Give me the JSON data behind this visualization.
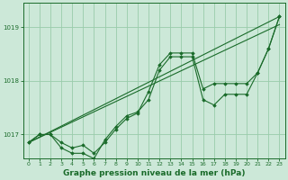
{
  "bg_color": "#cce8d8",
  "plot_bg_color": "#cce8d8",
  "grid_color": "#99ccaa",
  "line_color": "#1a6b2a",
  "marker_color": "#1a6b2a",
  "xlabel": "Graphe pression niveau de la mer (hPa)",
  "xlabel_fontsize": 6.5,
  "xticks": [
    0,
    1,
    2,
    3,
    4,
    5,
    6,
    7,
    8,
    9,
    10,
    11,
    12,
    13,
    14,
    15,
    16,
    17,
    18,
    19,
    20,
    21,
    22,
    23
  ],
  "yticks": [
    1017,
    1018,
    1019
  ],
  "ylim": [
    1016.55,
    1019.45
  ],
  "xlim": [
    -0.5,
    23.5
  ],
  "series1": [
    1016.85,
    1017.0,
    1017.0,
    1016.85,
    1016.75,
    1016.8,
    1016.65,
    1016.85,
    1017.1,
    1017.3,
    1017.4,
    1017.8,
    1018.3,
    1018.52,
    1018.52,
    1018.52,
    1017.85,
    1017.95,
    1017.95,
    1017.95,
    1017.95,
    1018.15,
    1018.6,
    1019.2
  ],
  "series2": [
    1016.85,
    1017.0,
    1017.0,
    1016.75,
    1016.65,
    1016.65,
    1016.55,
    1016.9,
    1017.15,
    1017.35,
    1017.42,
    1017.65,
    1018.2,
    1018.45,
    1018.45,
    1018.45,
    1017.65,
    1017.55,
    1017.75,
    1017.75,
    1017.75,
    1018.15,
    1018.6,
    1019.2
  ],
  "trend1_x": [
    0,
    23
  ],
  "trend1_y": [
    1016.85,
    1019.2
  ],
  "trend2_x": [
    0,
    23
  ],
  "trend2_y": [
    1016.85,
    1019.05
  ]
}
